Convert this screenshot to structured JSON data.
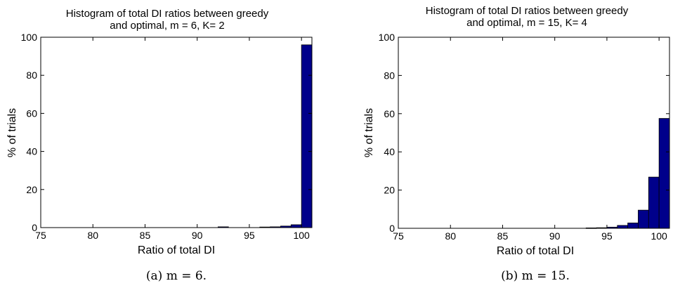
{
  "chart_data": [
    {
      "type": "bar",
      "title_lines": [
        "Histogram of total DI ratios between greedy",
        "and optimal, m =  6, K= 2"
      ],
      "xlabel": "Ratio of total DI",
      "ylabel": "% of trials",
      "xlim": [
        75,
        101
      ],
      "ylim": [
        0,
        100
      ],
      "xticks": [
        75,
        80,
        85,
        90,
        95,
        100
      ],
      "yticks": [
        0,
        20,
        40,
        60,
        80,
        100
      ],
      "bin_width": 1,
      "bins": [
        {
          "x": 92.5,
          "value": 0.4
        },
        {
          "x": 96.5,
          "value": 0.3
        },
        {
          "x": 97.5,
          "value": 0.4
        },
        {
          "x": 98.5,
          "value": 0.8
        },
        {
          "x": 99.5,
          "value": 1.5
        },
        {
          "x": 100.5,
          "value": 96
        }
      ],
      "bar_color": "#00008b",
      "caption": "(a)  m = 6."
    },
    {
      "type": "bar",
      "title_lines": [
        "Histogram of total DI ratios between greedy",
        "and optimal, m = 15, K= 4"
      ],
      "xlabel": "Ratio of total DI",
      "ylabel": "% of trials",
      "xlim": [
        75,
        101
      ],
      "ylim": [
        0,
        100
      ],
      "xticks": [
        75,
        80,
        85,
        90,
        95,
        100
      ],
      "yticks": [
        0,
        20,
        40,
        60,
        80,
        100
      ],
      "bin_width": 1,
      "bins": [
        {
          "x": 93.5,
          "value": 0.2
        },
        {
          "x": 94.5,
          "value": 0.3
        },
        {
          "x": 95.5,
          "value": 0.6
        },
        {
          "x": 96.5,
          "value": 1.5
        },
        {
          "x": 97.5,
          "value": 2.8
        },
        {
          "x": 98.5,
          "value": 9.5
        },
        {
          "x": 99.5,
          "value": 26.8
        },
        {
          "x": 100.5,
          "value": 57.5
        }
      ],
      "bar_color": "#00008b",
      "caption": "(b)  m = 15."
    }
  ]
}
